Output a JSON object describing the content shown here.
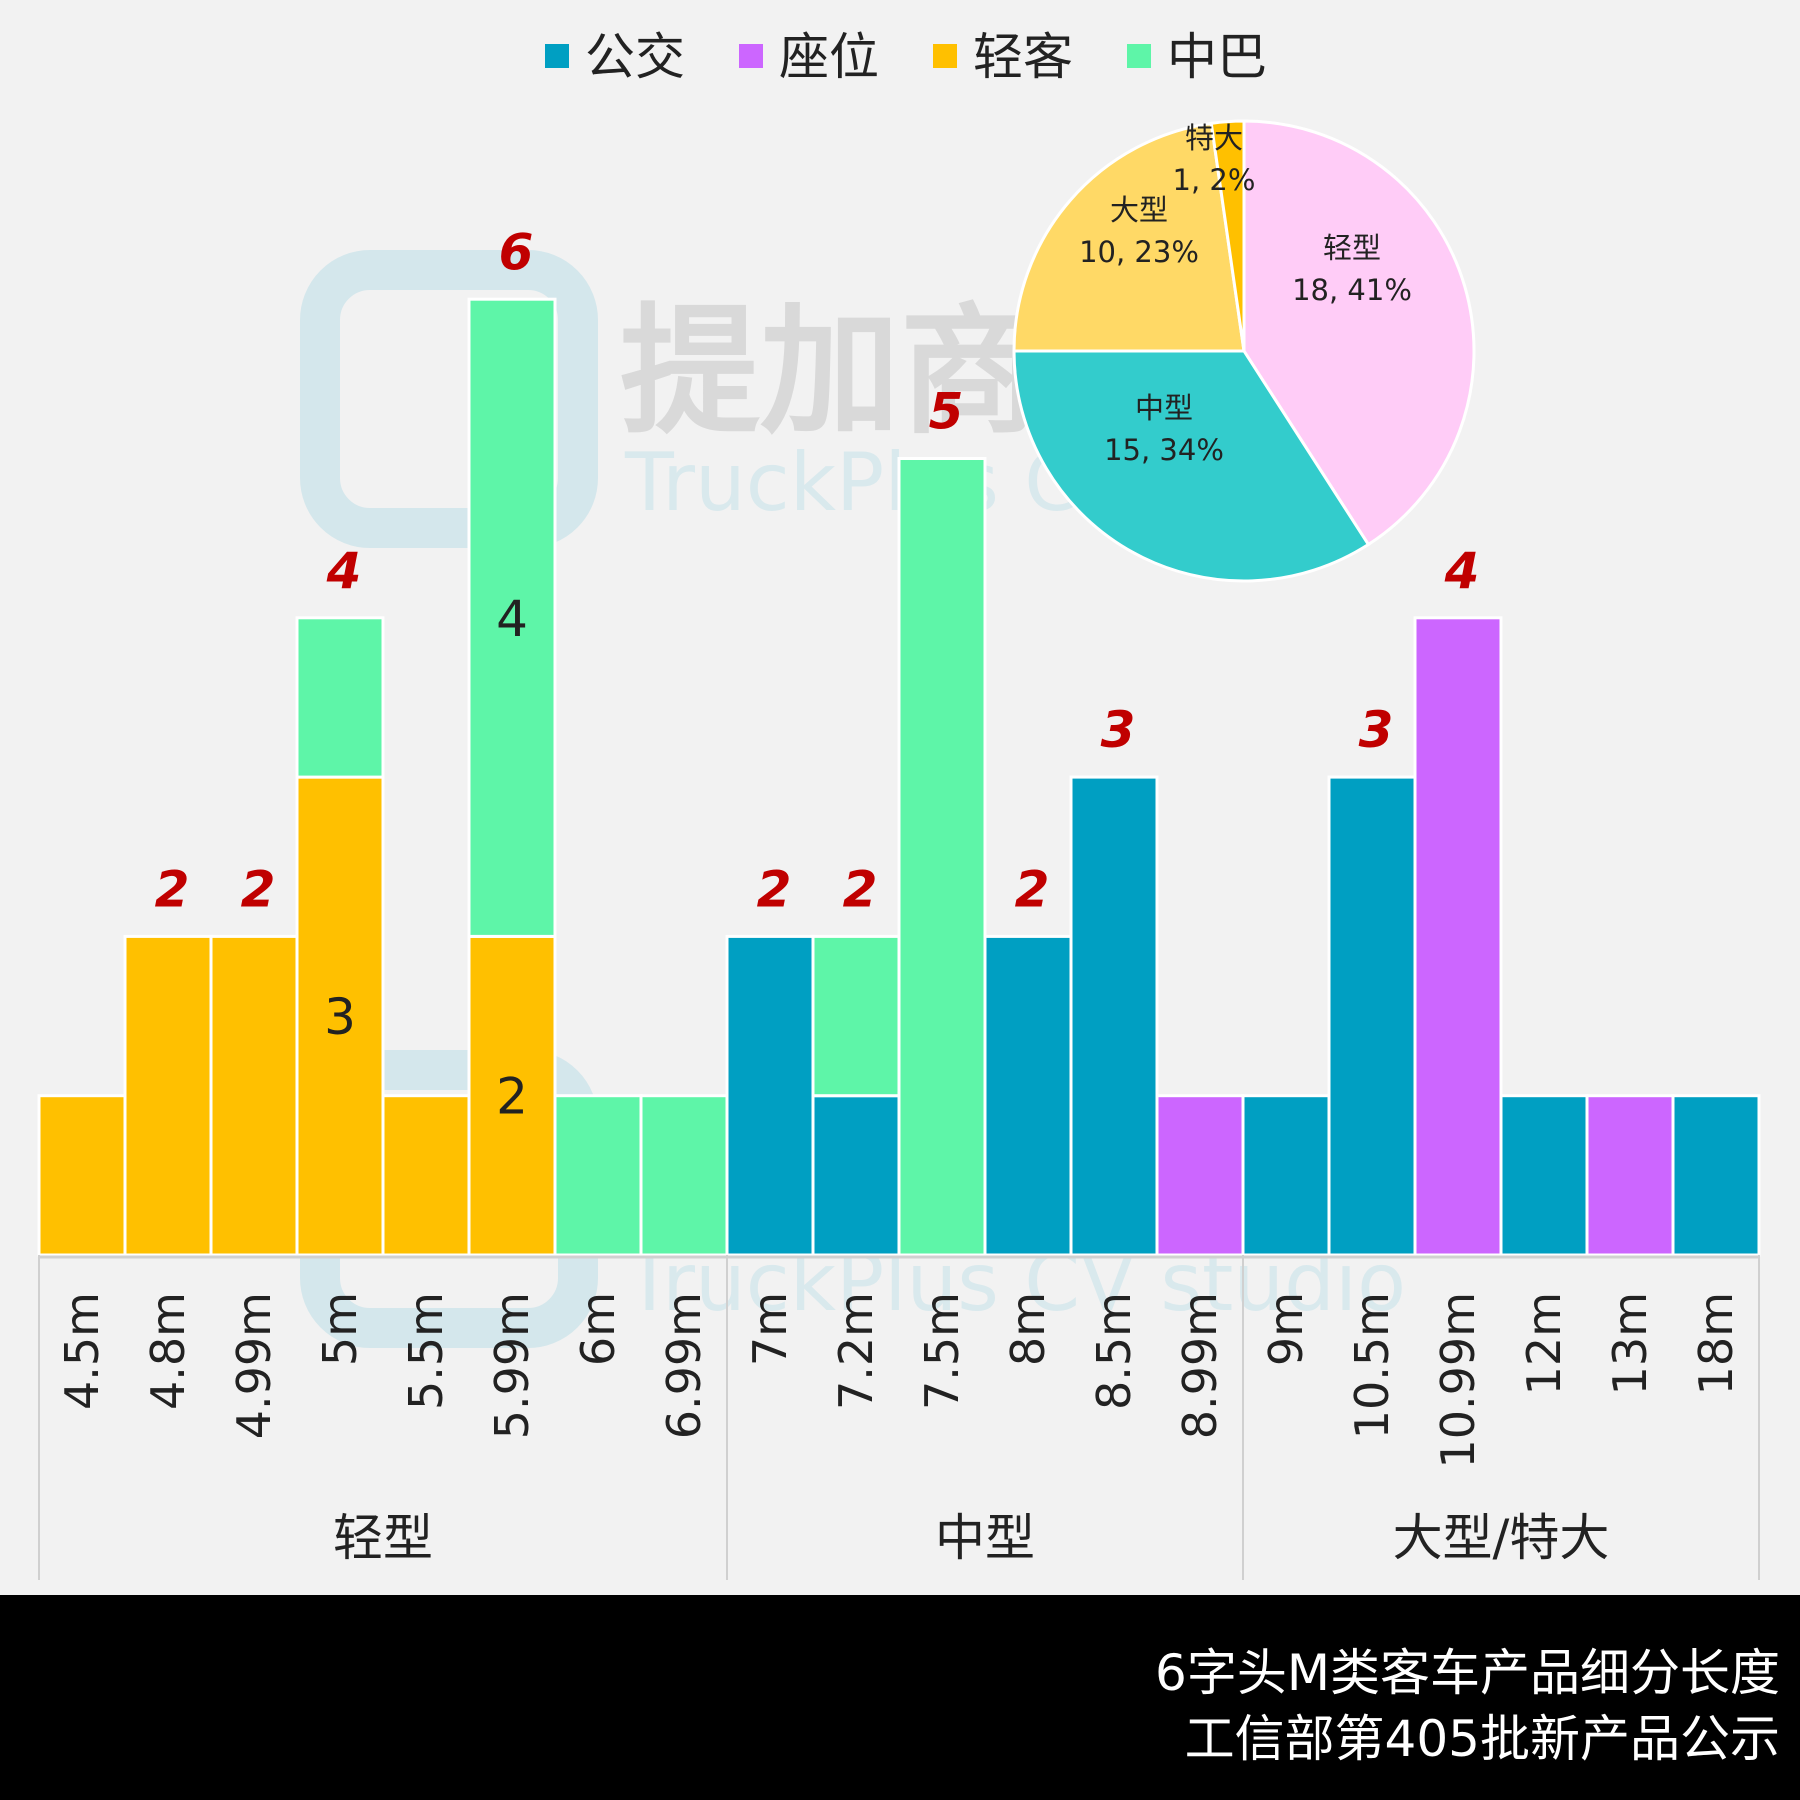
{
  "chart_data": {
    "type": "bar",
    "stacked": true,
    "title": "6字头M类客车产品细分长度",
    "subtitle": "工信部第405批新产品公示",
    "categories": [
      "4.5m",
      "4.8m",
      "4.99m",
      "5m",
      "5.5m",
      "5.99m",
      "6m",
      "6.99m",
      "7m",
      "7.2m",
      "7.5m",
      "8m",
      "8.5m",
      "8.99m",
      "9m",
      "10.5m",
      "10.99m",
      "12m",
      "13m",
      "18m"
    ],
    "groups": [
      {
        "label": "轻型",
        "count": 8
      },
      {
        "label": "中型",
        "count": 6
      },
      {
        "label": "大型/特大",
        "count": 6
      }
    ],
    "series": [
      {
        "name": "公交",
        "color": "#009fc2",
        "values": [
          0,
          0,
          0,
          0,
          0,
          0,
          0,
          0,
          2,
          1,
          0,
          2,
          3,
          0,
          1,
          3,
          0,
          1,
          0,
          1
        ]
      },
      {
        "name": "座位",
        "color": "#cc66ff",
        "values": [
          0,
          0,
          0,
          0,
          0,
          0,
          0,
          0,
          0,
          0,
          0,
          0,
          0,
          1,
          0,
          0,
          4,
          0,
          1,
          0
        ]
      },
      {
        "name": "轻客",
        "color": "#ffc000",
        "values": [
          1,
          2,
          2,
          3,
          1,
          2,
          0,
          0,
          0,
          0,
          0,
          0,
          0,
          0,
          0,
          0,
          0,
          0,
          0,
          0
        ]
      },
      {
        "name": "中巴",
        "color": "#5ef5a8",
        "values": [
          0,
          0,
          0,
          1,
          0,
          4,
          1,
          1,
          0,
          1,
          5,
          0,
          0,
          0,
          0,
          0,
          0,
          0,
          0,
          0
        ]
      }
    ],
    "segment_labels": [
      {
        "category": "5m",
        "series": "轻客",
        "text": "3"
      },
      {
        "category": "5.99m",
        "series": "轻客",
        "text": "2"
      },
      {
        "category": "5.99m",
        "series": "中巴",
        "text": "4"
      }
    ],
    "totals": [
      1,
      2,
      2,
      4,
      1,
      6,
      1,
      1,
      2,
      2,
      5,
      2,
      3,
      1,
      1,
      3,
      4,
      1,
      1,
      1
    ],
    "ylim": [
      0,
      7
    ],
    "legend": "top",
    "pie": {
      "type": "pie",
      "slices": [
        {
          "name": "轻型",
          "value": 18,
          "pct": "41%",
          "color": "#ffccf7"
        },
        {
          "name": "中型",
          "value": 15,
          "pct": "34%",
          "color": "#33cccc"
        },
        {
          "name": "大型",
          "value": 10,
          "pct": "23%",
          "color": "#ffd966"
        },
        {
          "name": "特大",
          "value": 1,
          "pct": "2%",
          "color": "#ffc000"
        }
      ]
    }
  },
  "watermark": {
    "cn": "提加商用车",
    "en": "TruckPlus CV studio"
  }
}
